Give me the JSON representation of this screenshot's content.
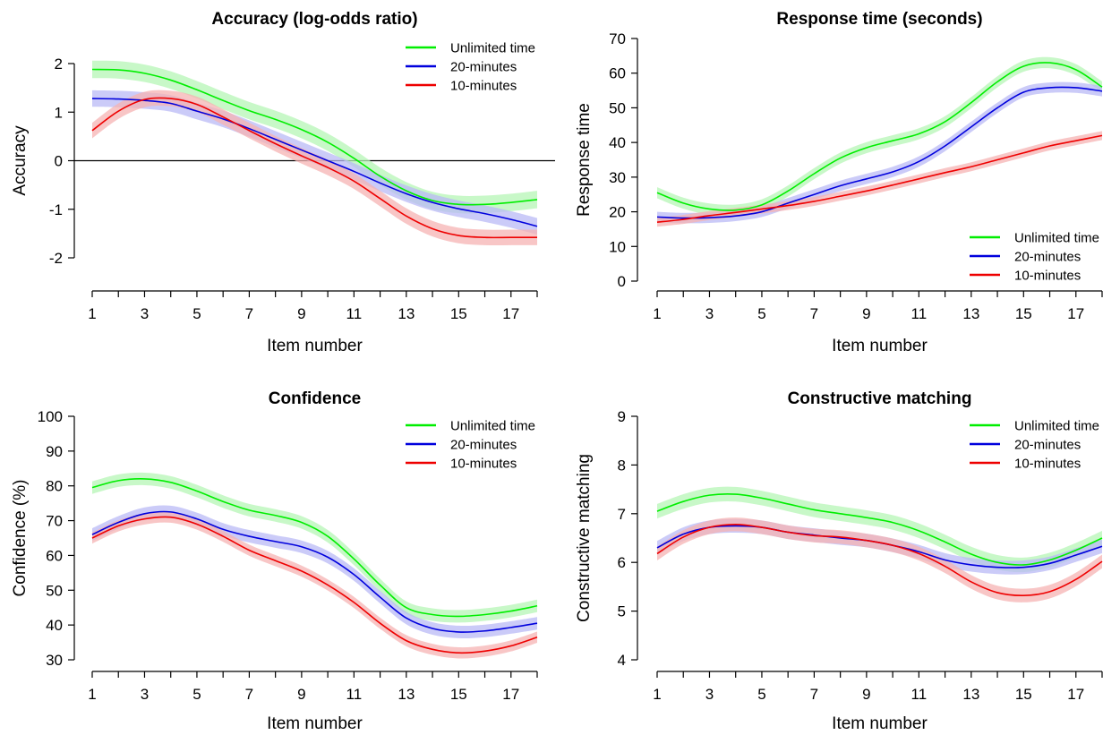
{
  "chart_data": [
    {
      "type": "line",
      "title": "Accuracy (log-odds ratio)",
      "xlabel": "Item number",
      "ylabel": "Accuracy",
      "xlim": [
        1,
        18
      ],
      "ylim": [
        -2,
        2
      ],
      "xticks": [
        1,
        3,
        5,
        7,
        9,
        11,
        13,
        15,
        17
      ],
      "yticks": [
        -2,
        -1,
        0,
        1,
        2
      ],
      "reference_line": 0,
      "legend_position": "top-right",
      "x": [
        1,
        2,
        3,
        4,
        5,
        6,
        7,
        8,
        9,
        10,
        11,
        12,
        13,
        14,
        15,
        16,
        17,
        18
      ],
      "series": [
        {
          "name": "Unlimited time",
          "color": "#00ee00",
          "band_color": "#b6f5b6",
          "band": 0.18,
          "values": [
            1.88,
            1.87,
            1.8,
            1.66,
            1.46,
            1.24,
            1.03,
            0.85,
            0.64,
            0.38,
            0.05,
            -0.32,
            -0.62,
            -0.82,
            -0.9,
            -0.9,
            -0.86,
            -0.8
          ]
        },
        {
          "name": "20-minutes",
          "color": "#0000dd",
          "band_color": "#b9b9f5",
          "band": 0.17,
          "values": [
            1.28,
            1.27,
            1.24,
            1.18,
            1.02,
            0.86,
            0.66,
            0.44,
            0.22,
            0.0,
            -0.22,
            -0.46,
            -0.68,
            -0.86,
            -0.99,
            -1.09,
            -1.21,
            -1.35
          ]
        },
        {
          "name": "10-minutes",
          "color": "#ee0000",
          "band_color": "#f6b3b3",
          "band": 0.16,
          "values": [
            0.62,
            1.02,
            1.26,
            1.28,
            1.16,
            0.9,
            0.62,
            0.35,
            0.1,
            -0.14,
            -0.42,
            -0.78,
            -1.14,
            -1.4,
            -1.54,
            -1.58,
            -1.58,
            -1.58
          ]
        }
      ]
    },
    {
      "type": "line",
      "title": "Response time (seconds)",
      "xlabel": "Item number",
      "ylabel": "Response time",
      "xlim": [
        1,
        18
      ],
      "ylim": [
        0,
        70
      ],
      "xticks": [
        1,
        3,
        5,
        7,
        9,
        11,
        13,
        15,
        17
      ],
      "yticks": [
        0,
        10,
        20,
        30,
        40,
        50,
        60,
        70
      ],
      "legend_position": "bottom-right",
      "x": [
        1,
        2,
        3,
        4,
        5,
        6,
        7,
        8,
        9,
        10,
        11,
        12,
        13,
        14,
        15,
        16,
        17,
        18
      ],
      "series": [
        {
          "name": "Unlimited time",
          "color": "#00ee00",
          "band_color": "#b6f5b6",
          "band": 1.6,
          "values": [
            25.5,
            22.5,
            20.8,
            20.5,
            22.0,
            26.0,
            31.0,
            35.5,
            38.5,
            40.5,
            42.5,
            46.0,
            51.5,
            57.5,
            62.0,
            63.0,
            61.0,
            56.0
          ]
        },
        {
          "name": "20-minutes",
          "color": "#0000dd",
          "band_color": "#b9b9f5",
          "band": 1.5,
          "values": [
            18.5,
            18.2,
            18.3,
            18.8,
            20.0,
            22.5,
            25.0,
            27.5,
            29.5,
            31.5,
            34.5,
            39.0,
            44.5,
            50.0,
            54.5,
            55.8,
            55.8,
            54.8
          ]
        },
        {
          "name": "10-minutes",
          "color": "#ee0000",
          "band_color": "#f6b3b3",
          "band": 1.3,
          "values": [
            17.0,
            17.8,
            18.9,
            19.8,
            20.8,
            21.8,
            23.0,
            24.5,
            26.0,
            27.7,
            29.5,
            31.3,
            33.0,
            35.0,
            37.0,
            39.0,
            40.5,
            42.0
          ]
        }
      ]
    },
    {
      "type": "line",
      "title": "Confidence",
      "xlabel": "Item number",
      "ylabel": "Confidence (%)",
      "xlim": [
        1,
        18
      ],
      "ylim": [
        30,
        100
      ],
      "xticks": [
        1,
        3,
        5,
        7,
        9,
        11,
        13,
        15,
        17
      ],
      "yticks": [
        30,
        40,
        50,
        60,
        70,
        80,
        90,
        100
      ],
      "legend_position": "top-right",
      "x": [
        1,
        2,
        3,
        4,
        5,
        6,
        7,
        8,
        9,
        10,
        11,
        12,
        13,
        14,
        15,
        16,
        17,
        18
      ],
      "series": [
        {
          "name": "Unlimited time",
          "color": "#00ee00",
          "band_color": "#b6f5b6",
          "band": 1.8,
          "values": [
            79.5,
            81.5,
            82.0,
            81.0,
            78.5,
            75.5,
            73.0,
            71.5,
            69.5,
            65.5,
            59.0,
            51.5,
            45.0,
            43.0,
            42.5,
            43.0,
            44.0,
            45.5
          ]
        },
        {
          "name": "20-minutes",
          "color": "#0000dd",
          "band_color": "#b9b9f5",
          "band": 1.8,
          "values": [
            66.0,
            69.5,
            72.0,
            72.5,
            70.5,
            67.5,
            65.5,
            64.0,
            62.5,
            59.5,
            54.5,
            48.0,
            42.0,
            39.0,
            38.0,
            38.3,
            39.3,
            40.5
          ]
        },
        {
          "name": "10-minutes",
          "color": "#ee0000",
          "band_color": "#f6b3b3",
          "band": 1.6,
          "values": [
            65.0,
            68.5,
            70.5,
            71.0,
            69.0,
            65.5,
            61.5,
            58.5,
            55.5,
            51.5,
            46.5,
            40.5,
            35.5,
            33.0,
            32.0,
            32.5,
            34.0,
            36.5
          ]
        }
      ]
    },
    {
      "type": "line",
      "title": "Constructive matching",
      "xlabel": "Item number",
      "ylabel": "Constructive matching",
      "xlim": [
        1,
        18
      ],
      "ylim": [
        4,
        9
      ],
      "xticks": [
        1,
        3,
        5,
        7,
        9,
        11,
        13,
        15,
        17
      ],
      "yticks": [
        4,
        5,
        6,
        7,
        8,
        9
      ],
      "legend_position": "top-right",
      "x": [
        1,
        2,
        3,
        4,
        5,
        6,
        7,
        8,
        9,
        10,
        11,
        12,
        13,
        14,
        15,
        16,
        17,
        18
      ],
      "series": [
        {
          "name": "Unlimited time",
          "color": "#00ee00",
          "band_color": "#b6f5b6",
          "band": 0.15,
          "values": [
            7.05,
            7.25,
            7.38,
            7.4,
            7.32,
            7.2,
            7.08,
            7.0,
            6.92,
            6.82,
            6.65,
            6.42,
            6.17,
            6.0,
            5.95,
            6.05,
            6.25,
            6.5
          ]
        },
        {
          "name": "20-minutes",
          "color": "#0000dd",
          "band_color": "#b9b9f5",
          "band": 0.14,
          "values": [
            6.3,
            6.58,
            6.72,
            6.75,
            6.72,
            6.62,
            6.56,
            6.5,
            6.45,
            6.35,
            6.22,
            6.05,
            5.95,
            5.9,
            5.9,
            5.98,
            6.15,
            6.33
          ]
        },
        {
          "name": "10-minutes",
          "color": "#ee0000",
          "band_color": "#f6b3b3",
          "band": 0.14,
          "values": [
            6.18,
            6.52,
            6.72,
            6.78,
            6.72,
            6.62,
            6.55,
            6.52,
            6.45,
            6.35,
            6.18,
            5.92,
            5.6,
            5.38,
            5.32,
            5.4,
            5.65,
            6.02
          ]
        }
      ]
    }
  ]
}
